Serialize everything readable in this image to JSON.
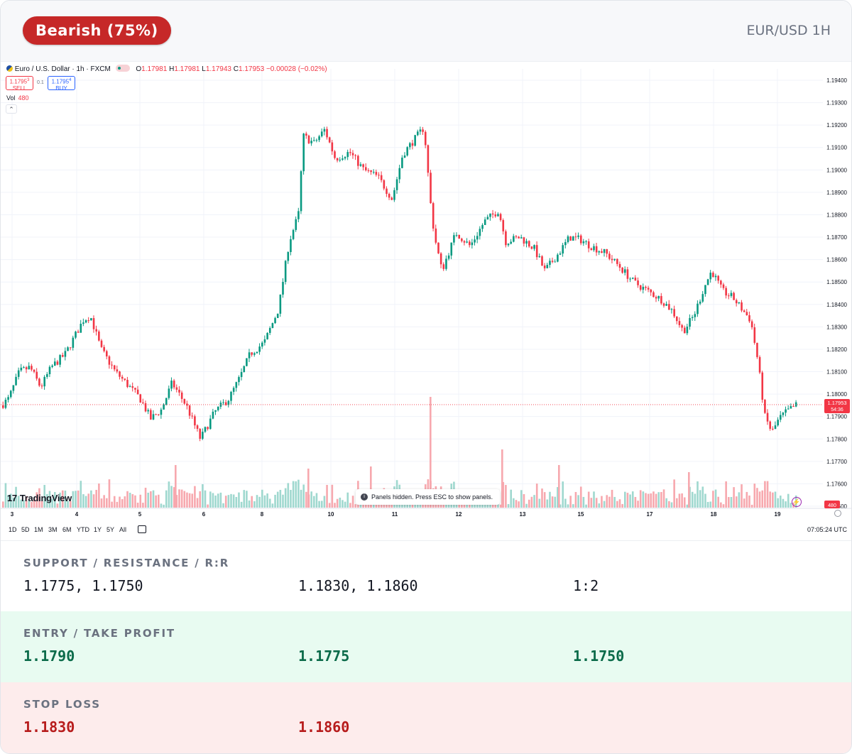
{
  "signal": {
    "label": "Bearish (75%)",
    "color": "#c62828"
  },
  "symbol": "EUR/USD 1H",
  "chart_header": {
    "title": "Euro / U.S. Dollar · 1h · FXCM",
    "open_label": "O",
    "open": "1.17981",
    "high_label": "H",
    "high": "1.17981",
    "low_label": "L",
    "low": "1.17943",
    "close_label": "C",
    "close": "1.17953",
    "change": "−0.00028 (−0.02%)",
    "sell_price": "1.1795",
    "sell_price_sup": "3",
    "sell_label": "SELL",
    "quantity": "0.1",
    "buy_price": "1.1795",
    "buy_price_sup": "4",
    "buy_label": "BUY",
    "volume_label": "Vol",
    "volume_value": "480"
  },
  "watermark": "TradingView",
  "panels_notice": "Panels hidden. Press ESC to show panels.",
  "range_buttons": [
    "1D",
    "5D",
    "1M",
    "3M",
    "6M",
    "YTD",
    "1Y",
    "5Y",
    "All"
  ],
  "clock": "07:05:24 UTC",
  "chart_data": {
    "type": "candlestick",
    "title": "Euro / U.S. Dollar · 1h · FXCM",
    "y_axis_ticks": [
      "1.19400",
      "1.19300",
      "1.19200",
      "1.19100",
      "1.19000",
      "1.18900",
      "1.18800",
      "1.18700",
      "1.18600",
      "1.18500",
      "1.18400",
      "1.18300",
      "1.18200",
      "1.18100",
      "1.18000",
      "1.17900",
      "1.17800",
      "1.17700",
      "1.17600",
      "1.17500"
    ],
    "ylim": [
      1.1745,
      1.1944
    ],
    "x_axis_ticks": [
      "3",
      "4",
      "5",
      "6",
      "8",
      "10",
      "11",
      "12",
      "13",
      "15",
      "17",
      "18",
      "19"
    ],
    "current_price": "1.17953",
    "countdown": "54:36",
    "volume_tag": "480",
    "price_path_close": [
      [
        0,
        1.1795
      ],
      [
        10,
        1.1798
      ],
      [
        25,
        1.181
      ],
      [
        40,
        1.1812
      ],
      [
        55,
        1.1803
      ],
      [
        70,
        1.1812
      ],
      [
        90,
        1.1818
      ],
      [
        115,
        1.1833
      ],
      [
        125,
        1.1835
      ],
      [
        140,
        1.182
      ],
      [
        160,
        1.181
      ],
      [
        175,
        1.1805
      ],
      [
        195,
        1.1798
      ],
      [
        210,
        1.1789
      ],
      [
        225,
        1.1793
      ],
      [
        240,
        1.1805
      ],
      [
        260,
        1.1795
      ],
      [
        280,
        1.178
      ],
      [
        300,
        1.1792
      ],
      [
        320,
        1.1798
      ],
      [
        335,
        1.1807
      ],
      [
        350,
        1.1818
      ],
      [
        370,
        1.1823
      ],
      [
        390,
        1.1838
      ],
      [
        405,
        1.1868
      ],
      [
        418,
        1.188
      ],
      [
        425,
        1.1915
      ],
      [
        440,
        1.1912
      ],
      [
        455,
        1.1918
      ],
      [
        470,
        1.1905
      ],
      [
        490,
        1.1908
      ],
      [
        510,
        1.19
      ],
      [
        530,
        1.1897
      ],
      [
        550,
        1.1887
      ],
      [
        565,
        1.1907
      ],
      [
        580,
        1.1913
      ],
      [
        595,
        1.1919
      ],
      [
        605,
        1.1882
      ],
      [
        610,
        1.187
      ],
      [
        620,
        1.1855
      ],
      [
        640,
        1.1872
      ],
      [
        660,
        1.1866
      ],
      [
        680,
        1.1877
      ],
      [
        700,
        1.1882
      ],
      [
        710,
        1.1868
      ],
      [
        730,
        1.187
      ],
      [
        750,
        1.1865
      ],
      [
        765,
        1.1855
      ],
      [
        785,
        1.1863
      ],
      [
        800,
        1.187
      ],
      [
        815,
        1.1869
      ],
      [
        830,
        1.1866
      ],
      [
        850,
        1.1863
      ],
      [
        870,
        1.1857
      ],
      [
        890,
        1.185
      ],
      [
        910,
        1.1846
      ],
      [
        930,
        1.1842
      ],
      [
        945,
        1.1837
      ],
      [
        960,
        1.1828
      ],
      [
        975,
        1.1835
      ],
      [
        990,
        1.1848
      ],
      [
        1000,
        1.1855
      ],
      [
        1015,
        1.1846
      ],
      [
        1030,
        1.1843
      ],
      [
        1045,
        1.1837
      ],
      [
        1055,
        1.1833
      ],
      [
        1065,
        1.1815
      ],
      [
        1075,
        1.179
      ],
      [
        1085,
        1.1783
      ],
      [
        1095,
        1.1789
      ],
      [
        1105,
        1.1792
      ],
      [
        1120,
        1.17953
      ]
    ]
  },
  "levels": {
    "heading": "SUPPORT / RESISTANCE / R:R",
    "support": "1.1775, 1.1750",
    "resistance": "1.1830, 1.1860",
    "rr": "1:2"
  },
  "entry": {
    "heading": "ENTRY / TAKE PROFIT",
    "entry": "1.1790",
    "tp1": "1.1775",
    "tp2": "1.1750"
  },
  "stop": {
    "heading": "STOP LOSS",
    "sl1": "1.1830",
    "sl2": "1.1860"
  }
}
